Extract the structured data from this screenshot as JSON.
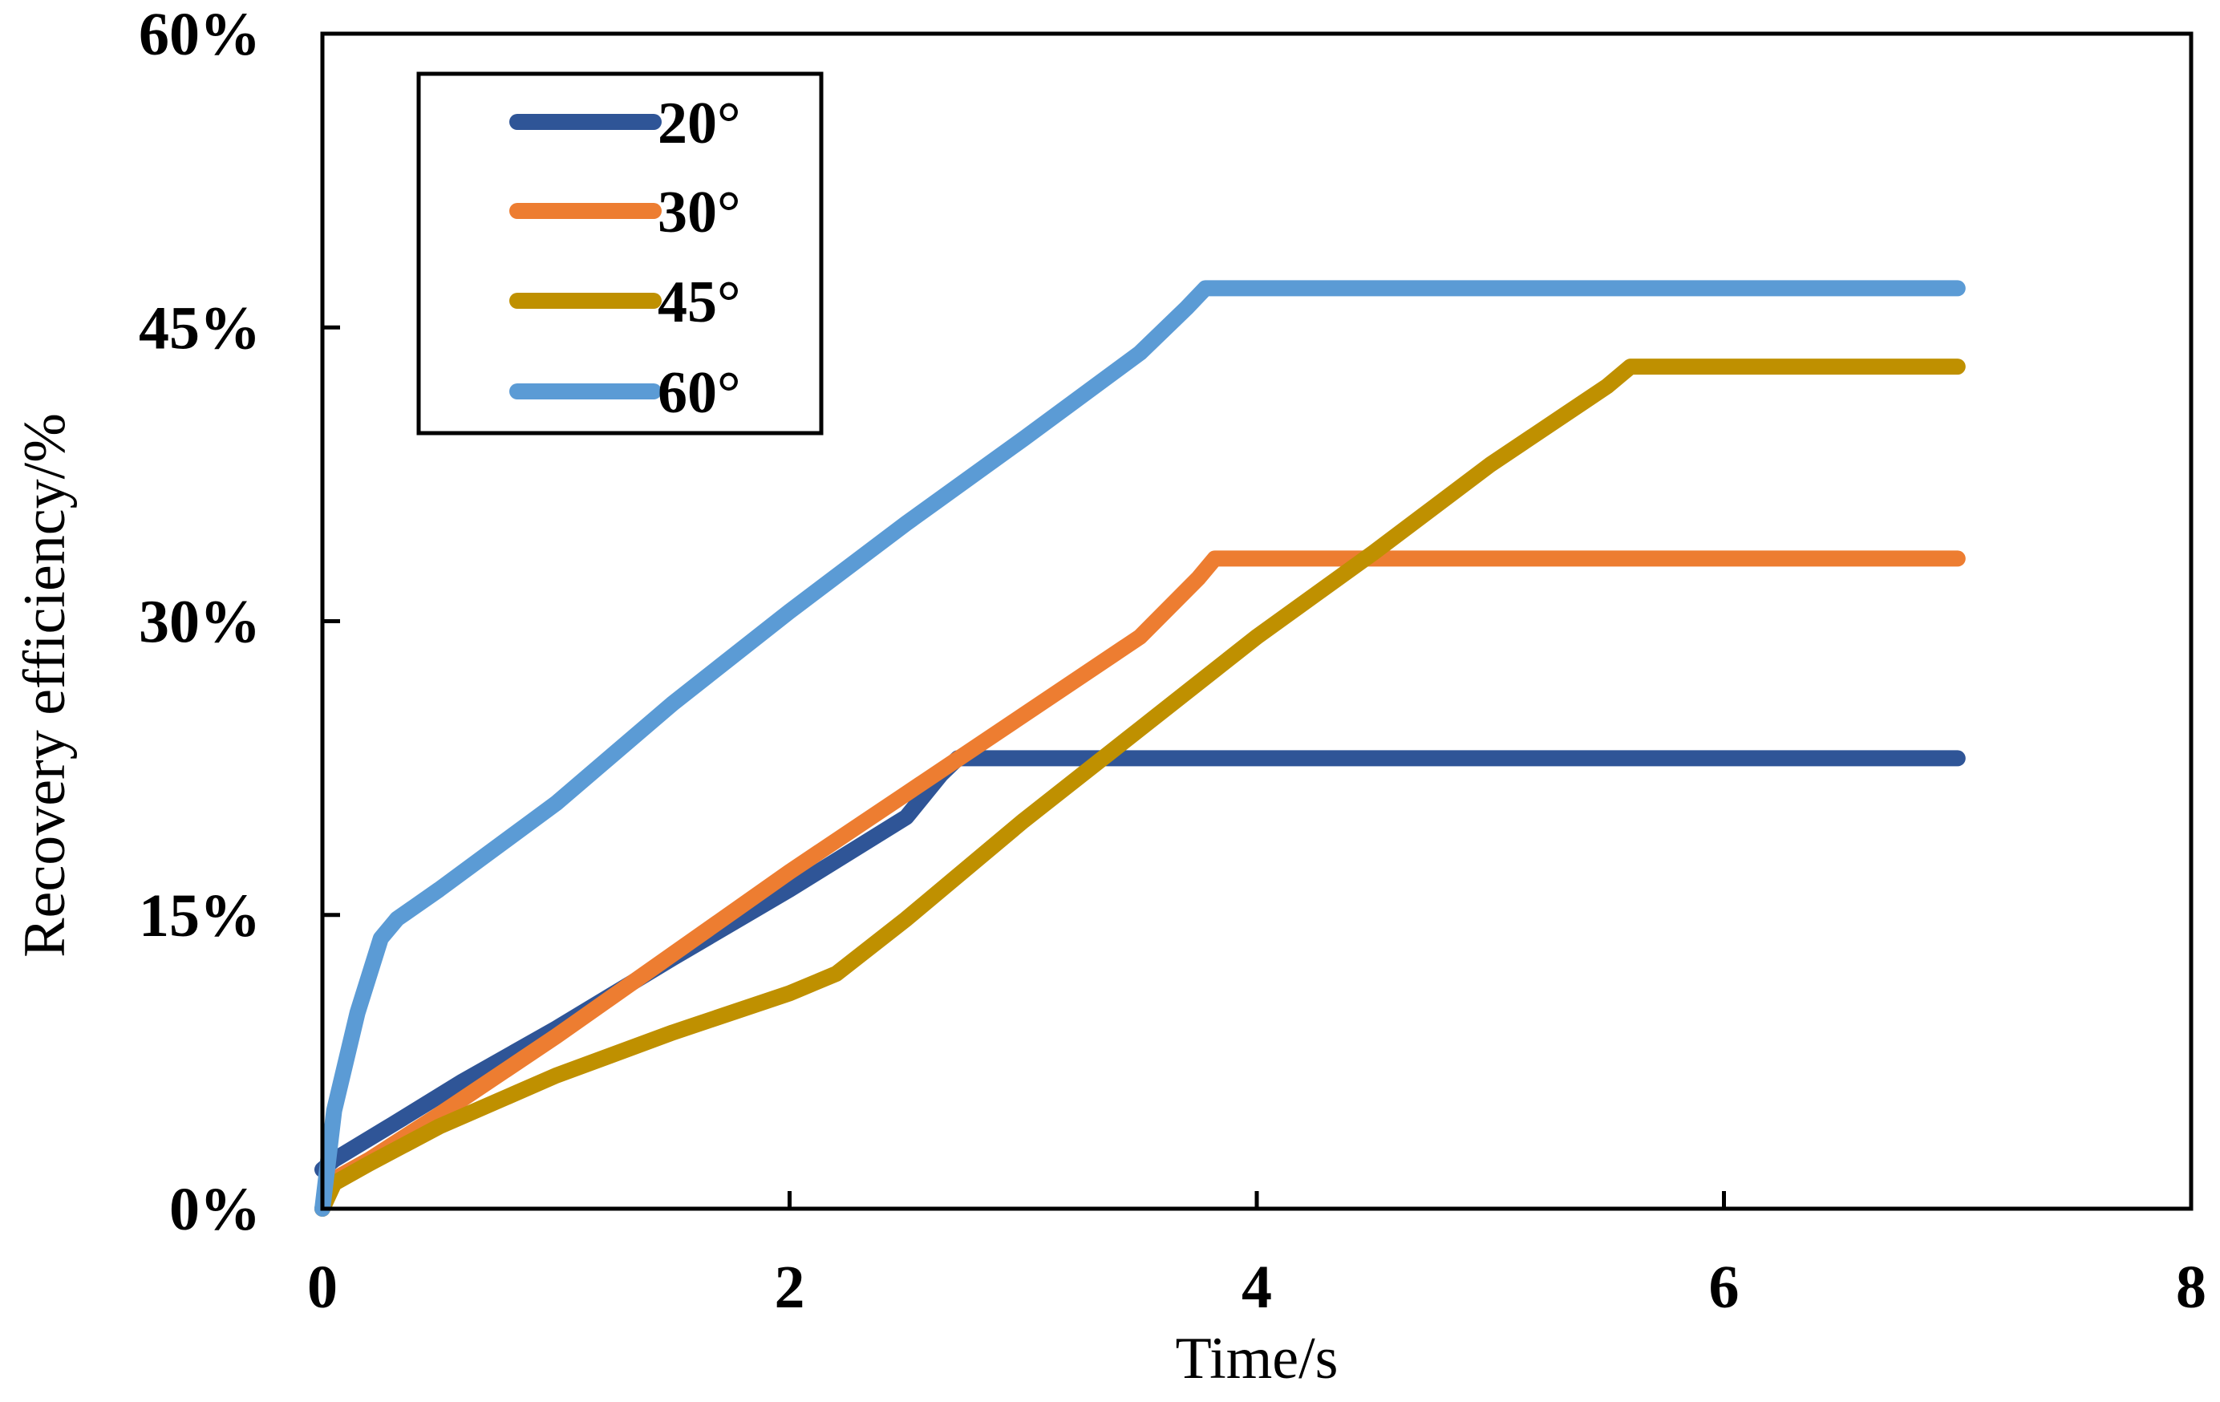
{
  "chart_data": {
    "type": "line",
    "title": "",
    "xlabel": "Time/s",
    "ylabel": "Recovery efficiency/%",
    "xlim": [
      0,
      8
    ],
    "ylim": [
      0,
      0.6
    ],
    "xticks": [
      0,
      2,
      4,
      6,
      8
    ],
    "xtick_labels": [
      "0",
      "2",
      "4",
      "6",
      "8"
    ],
    "yticks": [
      0,
      0.15,
      0.3,
      0.45,
      0.6
    ],
    "ytick_labels": [
      "0%",
      "15%",
      "30%",
      "45%",
      "60%"
    ],
    "legend_position": "top-left",
    "grid": false,
    "series": [
      {
        "name": "20°",
        "color": "#2f5597",
        "x": [
          0,
          0.05,
          0.3,
          0.6,
          1.0,
          1.5,
          2.0,
          2.5,
          2.65,
          2.72,
          3.0,
          4.0,
          5.0,
          6.0,
          7.0
        ],
        "y": [
          0.02,
          0.025,
          0.043,
          0.065,
          0.092,
          0.128,
          0.163,
          0.2,
          0.222,
          0.23,
          0.23,
          0.23,
          0.23,
          0.23,
          0.23
        ]
      },
      {
        "name": "30°",
        "color": "#ed7d31",
        "x": [
          0,
          0.05,
          0.2,
          0.5,
          1.0,
          1.5,
          2.0,
          2.5,
          3.0,
          3.5,
          3.75,
          3.82,
          4.5,
          5.5,
          7.0
        ],
        "y": [
          0.0,
          0.015,
          0.025,
          0.048,
          0.088,
          0.13,
          0.172,
          0.212,
          0.252,
          0.292,
          0.322,
          0.332,
          0.332,
          0.332,
          0.332
        ]
      },
      {
        "name": "45°",
        "color": "#bf9000",
        "x": [
          0,
          0.05,
          0.2,
          0.5,
          1.0,
          1.5,
          2.0,
          2.2,
          2.5,
          3.0,
          3.5,
          4.0,
          4.5,
          5.0,
          5.5,
          5.6,
          6.0,
          7.0
        ],
        "y": [
          0.0,
          0.013,
          0.023,
          0.042,
          0.068,
          0.09,
          0.11,
          0.12,
          0.148,
          0.198,
          0.245,
          0.292,
          0.335,
          0.38,
          0.42,
          0.43,
          0.43,
          0.43
        ]
      },
      {
        "name": "60°",
        "color": "#5b9bd5",
        "x": [
          0,
          0.05,
          0.15,
          0.25,
          0.32,
          0.5,
          1.0,
          1.5,
          2.0,
          2.5,
          3.0,
          3.5,
          3.7,
          3.78,
          4.5,
          5.5,
          7.0
        ],
        "y": [
          0.0,
          0.05,
          0.1,
          0.138,
          0.148,
          0.163,
          0.207,
          0.258,
          0.305,
          0.35,
          0.393,
          0.437,
          0.46,
          0.47,
          0.47,
          0.47,
          0.47
        ]
      }
    ]
  }
}
